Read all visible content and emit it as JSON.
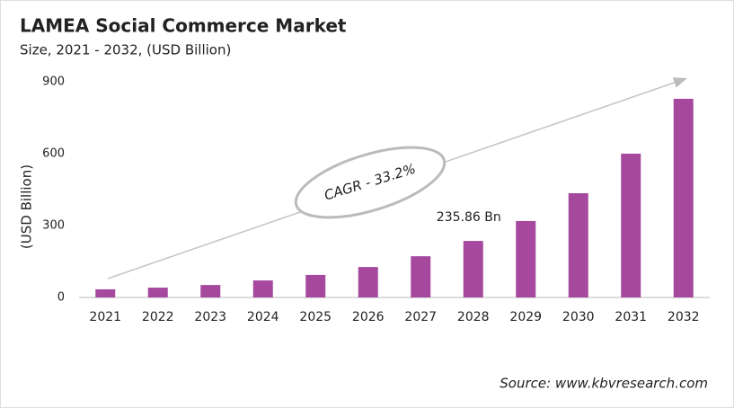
{
  "chart_data": {
    "type": "bar",
    "title": "LAMEA Social Commerce Market",
    "subtitle": "Size, 2021 - 2032, (USD Billion)",
    "y_label": "(USD Billion)",
    "categories": [
      "2021",
      "2022",
      "2023",
      "2024",
      "2025",
      "2026",
      "2027",
      "2028",
      "2029",
      "2030",
      "2031",
      "2032"
    ],
    "values": [
      34,
      41,
      52,
      71,
      94,
      127,
      172,
      235.86,
      319,
      435,
      600,
      829
    ],
    "value_labels": [
      null,
      null,
      null,
      null,
      null,
      null,
      null,
      "235.86 Bn",
      null,
      null,
      null,
      null
    ],
    "color": "#a5489e",
    "ylim": [
      0,
      900
    ],
    "yticks": [
      0,
      300,
      600,
      900
    ],
    "grid": false,
    "annotation": "CAGR - 33.2%",
    "source": "Source: www.kbvresearch.com"
  }
}
